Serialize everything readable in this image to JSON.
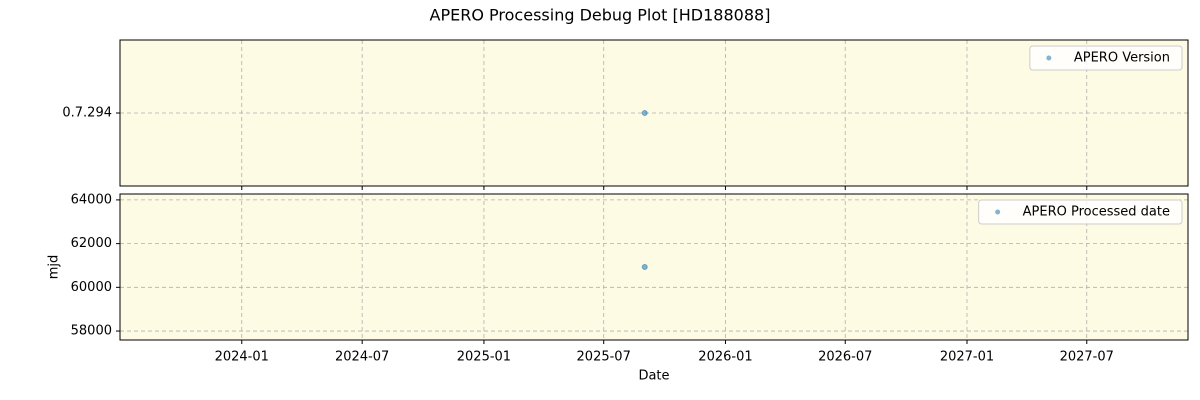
{
  "title": "APERO Processing Debug Plot [HD188088]",
  "chart_data": [
    {
      "type": "scatter",
      "y_categories": [
        "0.7.294"
      ],
      "series": [
        {
          "name": "APERO Version",
          "color": "#1f77b4",
          "x": [
            "2025-09"
          ],
          "values": [
            "0.7.294"
          ]
        }
      ],
      "xlim": [
        "2023-07",
        "2027-12"
      ],
      "xticks": [
        "2024-01",
        "2024-07",
        "2025-01",
        "2025-07",
        "2026-01",
        "2026-07",
        "2027-01",
        "2027-07"
      ],
      "show_xtick_labels": false,
      "grid": true,
      "legend": "upper right",
      "background": "#fdfbe3"
    },
    {
      "type": "scatter",
      "xlabel": "Date",
      "ylabel": "mjd",
      "series": [
        {
          "name": "APERO Processed date",
          "color": "#1f77b4",
          "x": [
            "2025-09"
          ],
          "values": [
            60930
          ]
        }
      ],
      "xlim": [
        "2023-07",
        "2027-12"
      ],
      "xticks": [
        "2024-01",
        "2024-07",
        "2025-01",
        "2025-07",
        "2026-01",
        "2026-07",
        "2027-01",
        "2027-07"
      ],
      "show_xtick_labels": true,
      "ylim": [
        57590,
        64270
      ],
      "yticks": [
        58000,
        60000,
        62000,
        64000
      ],
      "grid": true,
      "legend": "upper right",
      "background": "#fdfbe3"
    }
  ]
}
